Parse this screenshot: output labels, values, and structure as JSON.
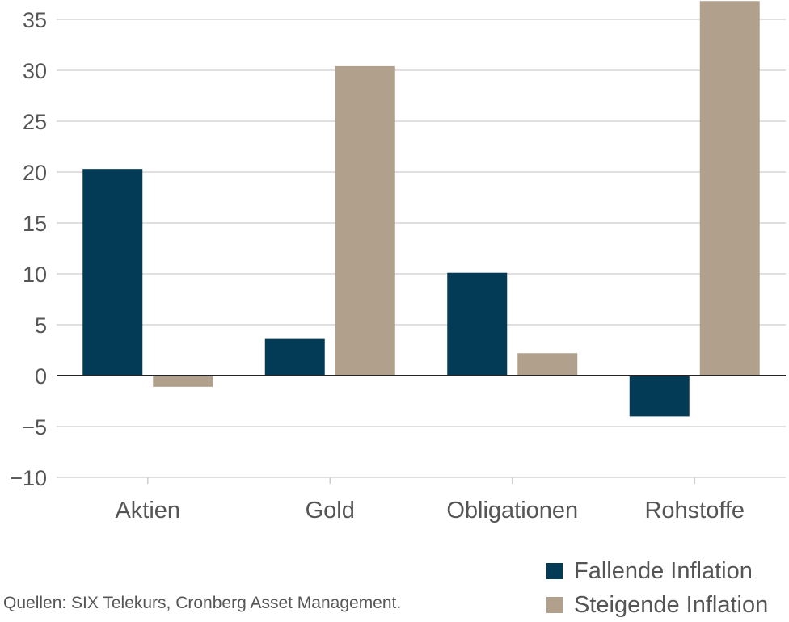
{
  "chart_data": {
    "type": "bar",
    "categories": [
      "Aktien",
      "Gold",
      "Obligationen",
      "Rohstoffe"
    ],
    "series": [
      {
        "name": "Fallende Inflation",
        "color": "#033a55",
        "values": [
          20.3,
          3.6,
          10.1,
          -4.0
        ]
      },
      {
        "name": "Steigende Inflation",
        "color": "#b0a08c",
        "values": [
          -1.1,
          30.4,
          2.2,
          36.8
        ]
      }
    ],
    "ylim": [
      -10,
      36.9
    ],
    "yticks": [
      -10,
      -5,
      0,
      5,
      10,
      15,
      20,
      25,
      30,
      35
    ],
    "ytick_labels": [
      "−10",
      "−5",
      "0",
      "5",
      "10",
      "15",
      "20",
      "25",
      "30",
      "35"
    ],
    "grid": true,
    "legend_position": "bottom-right",
    "source": "Quellen: SIX Telekurs, Cronberg Asset Management."
  }
}
